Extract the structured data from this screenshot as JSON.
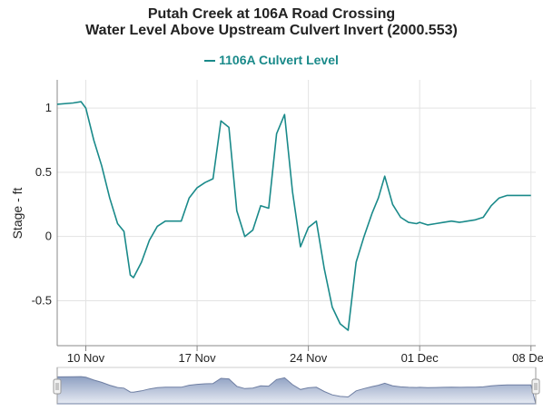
{
  "chart_data": {
    "type": "line",
    "title": "Putah Creek at 106A Road Crossing",
    "subtitle": "Water Level Above Upstream Culvert Invert (2000.553)",
    "ylabel": "Stage - ft",
    "xlabel": "",
    "ylim": [
      -0.85,
      1.22
    ],
    "xlim_days": [
      8.2,
      38.3
    ],
    "x_ticks": [
      {
        "label": "10 Nov",
        "day": 10
      },
      {
        "label": "17 Nov",
        "day": 17
      },
      {
        "label": "24 Nov",
        "day": 24
      },
      {
        "label": "01 Dec",
        "day": 31
      },
      {
        "label": "08 Dec",
        "day": 38
      }
    ],
    "y_ticks": [
      {
        "label": "1",
        "value": 1
      },
      {
        "label": "0.5",
        "value": 0.5
      },
      {
        "label": "0",
        "value": 0
      },
      {
        "label": "-0.5",
        "value": -0.5
      }
    ],
    "grid": true,
    "legend": "top-center",
    "series": [
      {
        "name": "1106A Culvert Level",
        "color": "#1a8a8a",
        "x_dates": [
          "Nov 8",
          "Nov 9",
          "Nov 9.5",
          "Nov 10",
          "Nov 10.5",
          "Nov 11",
          "Nov 11.5",
          "Nov 12",
          "Nov 12.4",
          "Nov 12.8",
          "Nov 13",
          "Nov 13.5",
          "Nov 14",
          "Nov 14.5",
          "Nov 15",
          "Nov 15.5",
          "Nov 16",
          "Nov 16.5",
          "Nov 17",
          "Nov 17.5",
          "Nov 18",
          "Nov 18.5",
          "Nov 19",
          "Nov 19.5",
          "Nov 20",
          "Nov 20.5",
          "Nov 21",
          "Nov 21.5",
          "Nov 22",
          "Nov 22.5",
          "Nov 23",
          "Nov 23.5",
          "Nov 24",
          "Nov 24.5",
          "Nov 25",
          "Nov 25.5",
          "Nov 26",
          "Nov 26.5",
          "Nov 27",
          "Nov 27.5",
          "Nov 28",
          "Nov 28.4",
          "Nov 28.8",
          "Nov 29.3",
          "Nov 29.8",
          "Nov 30.3",
          "Nov 30.8",
          "Dec 1",
          "Dec 1.5",
          "Dec 2",
          "Dec 2.5",
          "Dec 3",
          "Dec 3.5",
          "Dec 4",
          "Dec 4.5",
          "Dec 5",
          "Dec 5.5",
          "Dec 6",
          "Dec 6.5",
          "Dec 7",
          "Dec 7.5",
          "Dec 8",
          "Dec 8.5",
          "Dec 9",
          "Dec 9.3"
        ],
        "x": [
          8.2,
          9.2,
          9.7,
          10.0,
          10.5,
          11.0,
          11.5,
          12.0,
          12.4,
          12.8,
          13.0,
          13.5,
          14.0,
          14.5,
          15.0,
          15.5,
          16.0,
          16.5,
          17.0,
          17.5,
          18.0,
          18.5,
          19.0,
          19.5,
          20.0,
          20.5,
          21.0,
          21.5,
          22.0,
          22.5,
          23.0,
          23.5,
          24.0,
          24.5,
          25.0,
          25.5,
          26.0,
          26.5,
          27.0,
          27.5,
          28.0,
          28.4,
          28.8,
          29.3,
          29.8,
          30.3,
          30.8,
          31.0,
          31.5,
          32.0,
          32.5,
          33.0,
          33.5,
          34.0,
          34.5,
          35.0,
          35.5,
          36.0,
          36.5,
          37.0,
          37.5,
          38.0,
          38.5,
          39.0,
          39.3
        ],
        "values": [
          1.03,
          1.04,
          1.05,
          1.0,
          0.75,
          0.55,
          0.3,
          0.1,
          0.04,
          -0.3,
          -0.32,
          -0.2,
          -0.03,
          0.08,
          0.12,
          0.12,
          0.12,
          0.3,
          0.38,
          0.42,
          0.45,
          0.9,
          0.85,
          0.2,
          0.0,
          0.05,
          0.24,
          0.22,
          0.8,
          0.95,
          0.35,
          -0.08,
          0.07,
          0.12,
          -0.25,
          -0.55,
          -0.68,
          -0.73,
          -0.2,
          0.0,
          0.18,
          0.3,
          0.47,
          0.25,
          0.15,
          0.11,
          0.1,
          0.11,
          0.09,
          0.1,
          0.11,
          0.12,
          0.11,
          0.12,
          0.13,
          0.15,
          0.24,
          0.3,
          0.32,
          0.32,
          0.32,
          0.32,
          0.32,
          0.32,
          0.32
        ]
      }
    ]
  }
}
